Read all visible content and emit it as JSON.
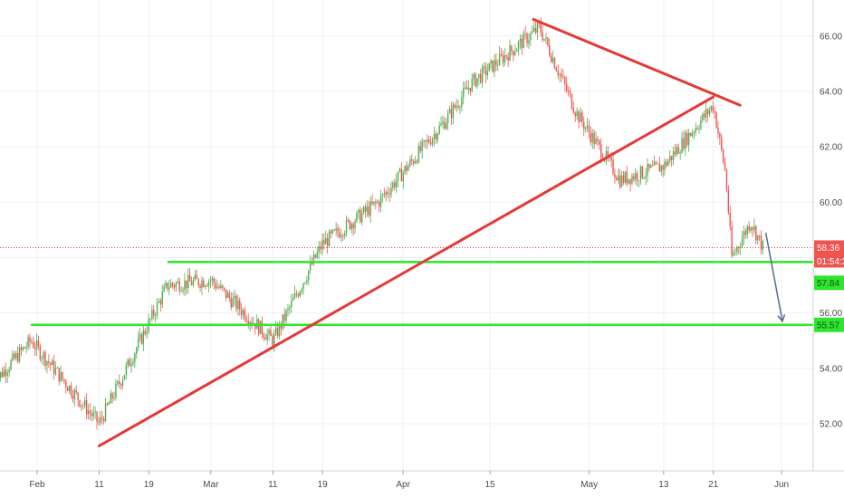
{
  "chart_data": {
    "type": "candlestick",
    "x_tick_labels": [
      "Feb",
      "11",
      "19",
      "Mar",
      "11",
      "19",
      "Apr",
      "15",
      "May",
      "13",
      "21",
      "Jun"
    ],
    "y_tick_labels": [
      "52.00",
      "54.00",
      "56.00",
      "58.00",
      "60.00",
      "62.00",
      "64.00",
      "66.00"
    ],
    "y_ticks": [
      52,
      54,
      56,
      58,
      60,
      62,
      64,
      66
    ],
    "ylim": [
      50.3,
      67.3
    ],
    "grid": true,
    "last_price": 58.36,
    "last_price_label": "58.36",
    "countdown_label": "01:54:32",
    "levels": [
      {
        "value": 57.84,
        "label": "57.84"
      },
      {
        "value": 55.57,
        "label": "55.57"
      }
    ],
    "key_closes": [
      {
        "date": "Jan 25",
        "close": 53.5
      },
      {
        "date": "Jan 31",
        "close": 55.0
      },
      {
        "date": "Feb 11",
        "close": 52.0
      },
      {
        "date": "Feb 22",
        "close": 57.0
      },
      {
        "date": "Mar 1",
        "close": 57.2
      },
      {
        "date": "Mar 11",
        "close": 55.0
      },
      {
        "date": "Mar 19",
        "close": 58.5
      },
      {
        "date": "Mar 28",
        "close": 60.0
      },
      {
        "date": "Apr 8",
        "close": 63.0
      },
      {
        "date": "Apr 12",
        "close": 64.3
      },
      {
        "date": "Apr 23",
        "close": 66.3
      },
      {
        "date": "Apr 29",
        "close": 63.2
      },
      {
        "date": "May 6",
        "close": 60.8
      },
      {
        "date": "May 13",
        "close": 61.3
      },
      {
        "date": "May 21",
        "close": 63.5
      },
      {
        "date": "May 23",
        "close": 61.0
      },
      {
        "date": "May 24",
        "close": 58.0
      },
      {
        "date": "May 27",
        "close": 59.3
      },
      {
        "date": "May 29",
        "close": 58.36
      }
    ],
    "trendlines": [
      {
        "from": {
          "date": "Feb 11",
          "price": 51.2
        },
        "to": {
          "date": "May 21",
          "price": 63.8
        }
      },
      {
        "from": {
          "date": "Apr 22",
          "price": 66.6
        },
        "to": {
          "date": "May 23",
          "price": 63.5
        }
      }
    ],
    "projection": {
      "from": {
        "date": "May 28",
        "price": 58.9
      },
      "to": {
        "date": "Jun 1",
        "price": 55.7
      }
    },
    "colors": {
      "up": "#26a69a",
      "down": "#ef5350",
      "up_candle": "#4caf50",
      "trendline": "#e53935",
      "level": "#2ee52e",
      "arrow": "#546e8a",
      "price_dotted": "#e04040",
      "grid": "#eef0f3"
    }
  }
}
